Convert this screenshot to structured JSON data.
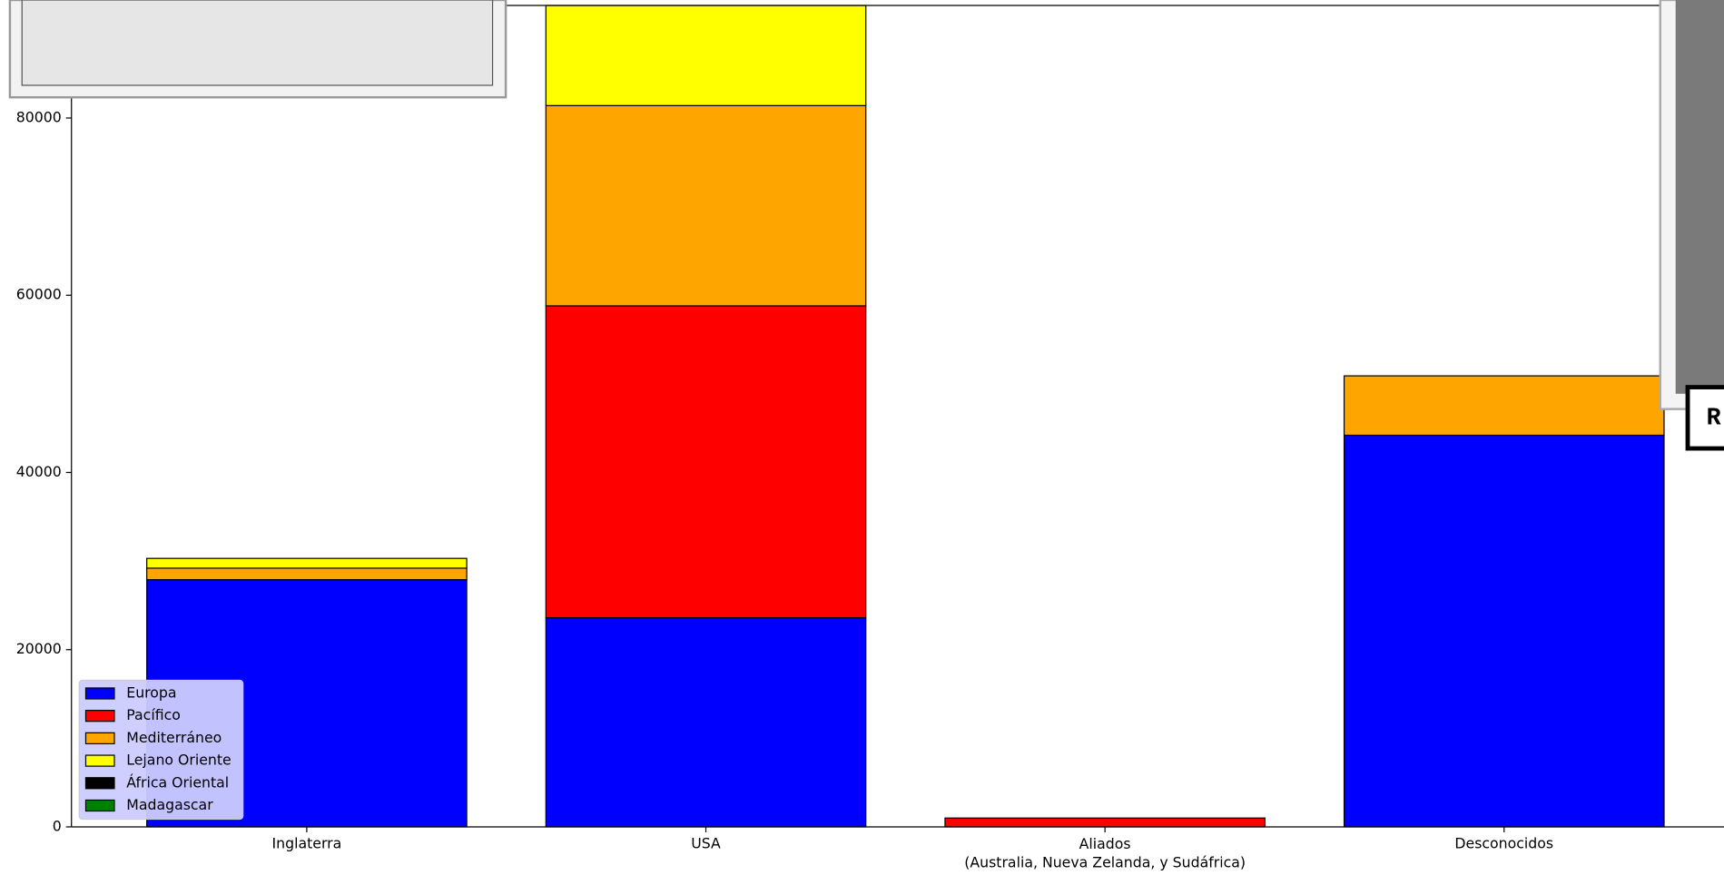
{
  "chart_data": {
    "type": "stacked_bar",
    "categories": [
      "Inglaterra",
      "USA",
      "Aliados\n(Australia, Nueva Zelanda, y Sudáfrica)",
      "Desconocidos"
    ],
    "series": [
      {
        "name": "Europa",
        "color": "#0000ff",
        "values": [
          27900,
          23600,
          0,
          44200
        ]
      },
      {
        "name": "Pacífico",
        "color": "#ff0000",
        "values": [
          0,
          35200,
          1000,
          0
        ]
      },
      {
        "name": "Mediterráneo",
        "color": "#ffa500",
        "values": [
          1300,
          22600,
          0,
          6700
        ]
      },
      {
        "name": "Lejano Oriente",
        "color": "#ffff00",
        "values": [
          1100,
          11300,
          0,
          0
        ]
      },
      {
        "name": "África Oriental",
        "color": "#000000",
        "values": [
          0,
          0,
          0,
          0
        ]
      },
      {
        "name": "Madagascar",
        "color": "#008000",
        "values": [
          0,
          0,
          0,
          0
        ]
      }
    ],
    "ylim": [
      0,
      92700
    ],
    "yticks": [
      0,
      20000,
      40000,
      60000,
      80000
    ],
    "legend": "lower left"
  },
  "overlay_label": "R"
}
